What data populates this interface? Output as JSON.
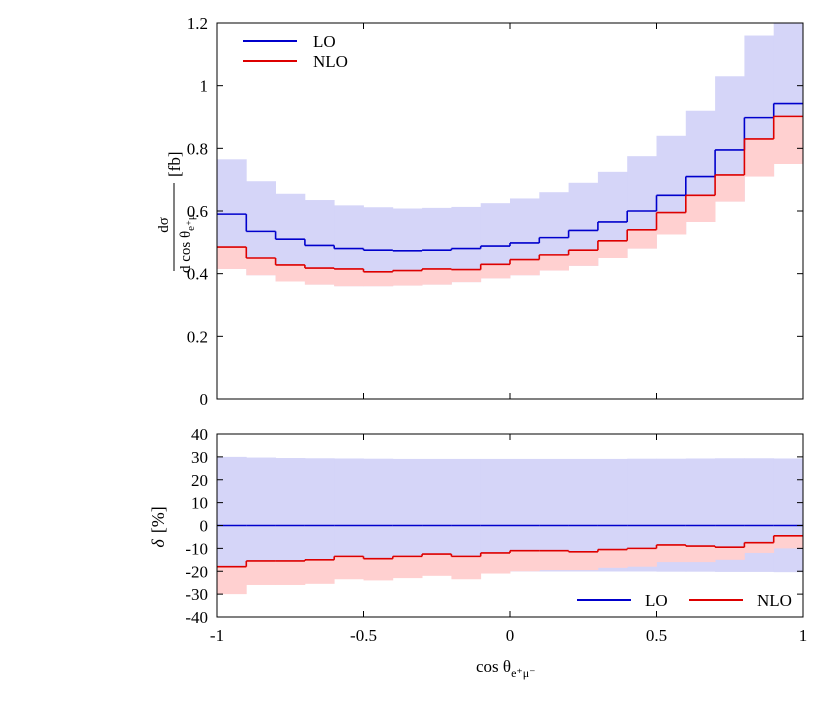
{
  "chart_data": [
    {
      "type": "step",
      "panel": "main",
      "title": "",
      "xlabel": "",
      "ylabel": "dσ / dcos θe+μ- [fb]",
      "ylabel_parts": {
        "num": "dσ",
        "den": "d cos θ",
        "den_sub": "e⁺μ⁻",
        "unit": "[fb]"
      },
      "xlim": [
        -1,
        1
      ],
      "ylim": [
        0,
        1.2
      ],
      "bin_edges": [
        -1,
        -0.9,
        -0.8,
        -0.7,
        -0.6,
        -0.5,
        -0.4,
        -0.3,
        -0.2,
        -0.1,
        0,
        0.1,
        0.2,
        0.3,
        0.4,
        0.5,
        0.6,
        0.7,
        0.8,
        0.9,
        1
      ],
      "x_ticks": [
        -1,
        -0.5,
        0,
        0.5,
        1
      ],
      "y_ticks": [
        0,
        0.2,
        0.4,
        0.6,
        0.8,
        1,
        1.2
      ],
      "y_tick_labels": [
        "0",
        "0.2",
        "0.4",
        "0.6",
        "0.8",
        "1",
        "1.2"
      ],
      "legend_position": "top-left",
      "series": [
        {
          "name": "LO",
          "color": "#0000cc",
          "band_color": "#d5d5f8",
          "values": [
            0.59,
            0.535,
            0.51,
            0.49,
            0.48,
            0.475,
            0.473,
            0.475,
            0.48,
            0.488,
            0.498,
            0.515,
            0.538,
            0.565,
            0.6,
            0.65,
            0.71,
            0.795,
            0.898,
            0.943
          ],
          "band_upper": [
            0.765,
            0.695,
            0.655,
            0.635,
            0.618,
            0.612,
            0.608,
            0.61,
            0.613,
            0.625,
            0.64,
            0.66,
            0.69,
            0.725,
            0.775,
            0.84,
            0.92,
            1.03,
            1.16,
            1.2
          ],
          "band_lower": [
            0.415,
            0.395,
            0.375,
            0.365,
            0.36,
            0.36,
            0.362,
            0.365,
            0.373,
            0.385,
            0.395,
            0.41,
            0.425,
            0.45,
            0.48,
            0.525,
            0.565,
            0.63,
            0.71,
            0.75
          ]
        },
        {
          "name": "NLO",
          "color": "#dd0000",
          "band_color": "#ffd0d0",
          "values": [
            0.485,
            0.45,
            0.428,
            0.418,
            0.415,
            0.406,
            0.41,
            0.415,
            0.413,
            0.43,
            0.445,
            0.46,
            0.475,
            0.505,
            0.54,
            0.595,
            0.65,
            0.715,
            0.83,
            0.902
          ],
          "band_upper": [
            0.485,
            0.45,
            0.428,
            0.418,
            0.415,
            0.406,
            0.41,
            0.415,
            0.413,
            0.43,
            0.445,
            0.46,
            0.475,
            0.505,
            0.54,
            0.595,
            0.65,
            0.715,
            0.83,
            0.902
          ],
          "band_lower": [
            0.415,
            0.395,
            0.375,
            0.365,
            0.36,
            0.36,
            0.362,
            0.365,
            0.373,
            0.385,
            0.395,
            0.41,
            0.425,
            0.45,
            0.48,
            0.525,
            0.565,
            0.63,
            0.71,
            0.75
          ]
        }
      ]
    },
    {
      "type": "step",
      "panel": "ratio",
      "title": "",
      "xlabel": "cos θe+μ-",
      "xlabel_parts": {
        "main": "cos θ",
        "sub": "e⁺μ⁻"
      },
      "ylabel": "δ [%]",
      "ylabel_parts": {
        "main": "δ",
        "unit": "[%]"
      },
      "xlim": [
        -1,
        1
      ],
      "ylim": [
        -40,
        40
      ],
      "bin_edges": [
        -1,
        -0.9,
        -0.8,
        -0.7,
        -0.6,
        -0.5,
        -0.4,
        -0.3,
        -0.2,
        -0.1,
        0,
        0.1,
        0.2,
        0.3,
        0.4,
        0.5,
        0.6,
        0.7,
        0.8,
        0.9,
        1
      ],
      "x_ticks": [
        -1,
        -0.5,
        0,
        0.5,
        1
      ],
      "x_tick_labels": [
        "-1",
        "-0.5",
        "0",
        "0.5",
        "1"
      ],
      "y_ticks": [
        -40,
        -30,
        -20,
        -10,
        0,
        10,
        20,
        30,
        40
      ],
      "y_tick_labels": [
        "-40",
        "-30",
        "-20",
        "-10",
        "0",
        "10",
        "20",
        "30",
        "40"
      ],
      "legend_position": "bottom-right",
      "series": [
        {
          "name": "LO",
          "color": "#0000cc",
          "band_color": "#d5d5f8",
          "values": [
            0,
            0,
            0,
            0,
            0,
            0,
            0,
            0,
            0,
            0,
            0,
            0,
            0,
            0,
            0,
            0,
            0,
            0,
            0,
            0
          ],
          "band_upper": [
            30,
            29.7,
            29.5,
            29.4,
            29.3,
            29.2,
            29.1,
            29.1,
            29.1,
            29.1,
            29.1,
            29.1,
            29.1,
            29.1,
            29.2,
            29.2,
            29.3,
            29.4,
            29.4,
            29.3
          ],
          "band_lower": [
            -20.5,
            -20.4,
            -20.3,
            -20.2,
            -20.2,
            -20.1,
            -20.1,
            -20.1,
            -20.1,
            -20.1,
            -20.1,
            -20.1,
            -20.1,
            -20.1,
            -20.1,
            -20.2,
            -20.2,
            -20.3,
            -20.3,
            -20.4
          ]
        },
        {
          "name": "NLO",
          "color": "#dd0000",
          "band_color": "#ffd0d0",
          "values": [
            -18,
            -15.5,
            -15.5,
            -15,
            -13.5,
            -14.5,
            -13.5,
            -12.5,
            -13.5,
            -12,
            -11,
            -11,
            -11.5,
            -10.5,
            -10,
            -8.5,
            -9,
            -9.5,
            -7.5,
            -4.5
          ],
          "band_upper": [
            -18,
            -15.5,
            -15.5,
            -15,
            -13.5,
            -14.5,
            -13.5,
            -12.5,
            -13.5,
            -12,
            -11,
            -11,
            -11.5,
            -10.5,
            -10,
            -8.5,
            -9,
            -9.5,
            -7.5,
            -4.5
          ],
          "band_lower": [
            -30,
            -26,
            -26,
            -25.5,
            -23.5,
            -24,
            -23,
            -22,
            -23.5,
            -21,
            -20,
            -19.5,
            -19.5,
            -18.5,
            -18,
            -16,
            -16,
            -15,
            -12,
            -10
          ]
        }
      ]
    }
  ]
}
